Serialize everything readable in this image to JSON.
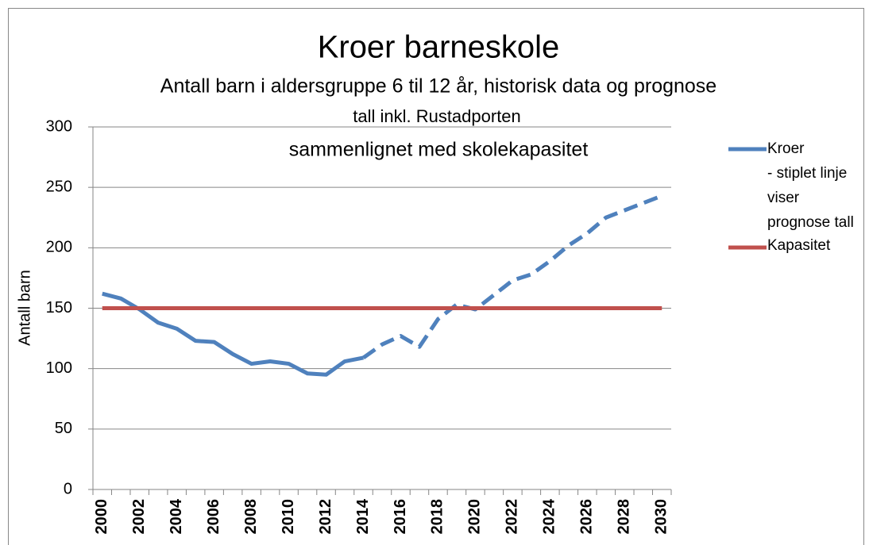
{
  "chart_data": {
    "type": "line",
    "title": "Kroer barneskole",
    "subtitle": [
      "Antall barn i aldersgruppe 6 til 12 år, historisk data og prognose",
      "tall inkl. Rustadporten",
      "sammenlignet med skolekapasitet"
    ],
    "y_label": "Antall barn",
    "categories": [
      "2000",
      null,
      "2002",
      null,
      "2004",
      null,
      "2006",
      null,
      "2008",
      null,
      "2010",
      null,
      "2012",
      null,
      "2014",
      null,
      "2016",
      null,
      "2018",
      null,
      "2020",
      null,
      "2022",
      null,
      "2024",
      null,
      "2026",
      null,
      "2028",
      null,
      "2030"
    ],
    "series": [
      {
        "name": [
          "Kroer",
          " - stiplet linje",
          "viser",
          "prognose tall"
        ],
        "color": "#4f81bd",
        "dashed_from": "2014",
        "values": [
          162,
          158,
          149,
          138,
          133,
          123,
          122,
          112,
          104,
          106,
          104,
          96,
          95,
          106,
          109,
          120,
          127,
          118,
          141,
          153,
          149,
          161,
          173,
          178,
          189,
          202,
          212,
          225,
          231,
          237,
          243
        ]
      },
      {
        "name": [
          "Kapasitet"
        ],
        "color": "#c0504d",
        "values": [
          150,
          150,
          150,
          150,
          150,
          150,
          150,
          150,
          150,
          150,
          150,
          150,
          150,
          150,
          150,
          150,
          150,
          150,
          150,
          150,
          150,
          150,
          150,
          150,
          150,
          150,
          150,
          150,
          150,
          150,
          150
        ]
      }
    ],
    "ylim": [
      0,
      300
    ],
    "yticks": [
      0,
      50,
      100,
      150,
      200,
      250,
      300
    ],
    "grid": true,
    "legend": "right"
  }
}
